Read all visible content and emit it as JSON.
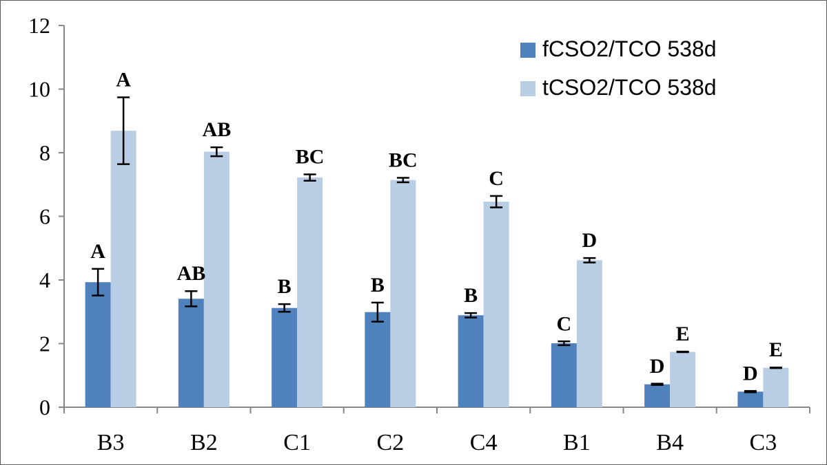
{
  "chart_data": {
    "type": "bar",
    "categories": [
      "B3",
      "B2",
      "C1",
      "C2",
      "C4",
      "B1",
      "B4",
      "C3"
    ],
    "series": [
      {
        "name": "fCSO2/TCO 538d",
        "color": "#4f81bd",
        "values": [
          3.93,
          3.41,
          3.12,
          2.99,
          2.89,
          2.01,
          0.72,
          0.49
        ],
        "errors": [
          0.42,
          0.24,
          0.12,
          0.3,
          0.07,
          0.06,
          0.02,
          0.02
        ],
        "letters": [
          "A",
          "AB",
          "B",
          "B",
          "B",
          "C",
          "D",
          "D"
        ]
      },
      {
        "name": "tCSO2/TCO 538d",
        "color": "#b9cde5",
        "values": [
          8.69,
          8.03,
          7.22,
          7.14,
          6.46,
          4.62,
          1.74,
          1.24
        ],
        "errors": [
          1.05,
          0.14,
          0.1,
          0.07,
          0.18,
          0.07,
          0.01,
          0.01
        ],
        "letters": [
          "A",
          "AB",
          "BC",
          "BC",
          "C",
          "D",
          "E",
          "E"
        ]
      }
    ],
    "ylim": [
      0,
      12
    ],
    "yticks": [
      0,
      2,
      4,
      6,
      8,
      10,
      12
    ],
    "title": "",
    "xlabel": "",
    "ylabel": "",
    "grid": false,
    "legend_position": "top-right"
  }
}
